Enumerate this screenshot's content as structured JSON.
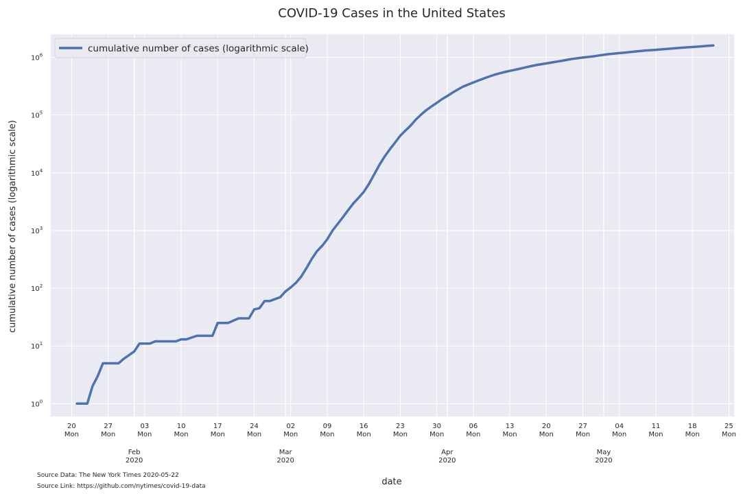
{
  "chart_data": {
    "type": "line",
    "title": "COVID-19 Cases in the United States",
    "xlabel": "date",
    "ylabel": "cumulative number of cases (logarithmic scale)",
    "yscale": "log",
    "ylim": [
      0.6,
      2500000
    ],
    "xlim": [
      "2020-01-16",
      "2020-05-26"
    ],
    "grid": true,
    "legend": {
      "position": "top-left",
      "entries": [
        "cumulative number of cases (logarithmic scale)"
      ]
    },
    "color": "#4c72b0",
    "yticks": [
      {
        "value": 1,
        "base": "10",
        "exp": "0"
      },
      {
        "value": 10,
        "base": "10",
        "exp": "1"
      },
      {
        "value": 100,
        "base": "10",
        "exp": "2"
      },
      {
        "value": 1000,
        "base": "10",
        "exp": "3"
      },
      {
        "value": 10000,
        "base": "10",
        "exp": "4"
      },
      {
        "value": 100000,
        "base": "10",
        "exp": "5"
      },
      {
        "value": 1000000,
        "base": "10",
        "exp": "6"
      }
    ],
    "xticks_minor": [
      {
        "date": "2020-01-20",
        "day": "20",
        "weekday": "Mon"
      },
      {
        "date": "2020-01-27",
        "day": "27",
        "weekday": "Mon"
      },
      {
        "date": "2020-02-03",
        "day": "03",
        "weekday": "Mon"
      },
      {
        "date": "2020-02-10",
        "day": "10",
        "weekday": "Mon"
      },
      {
        "date": "2020-02-17",
        "day": "17",
        "weekday": "Mon"
      },
      {
        "date": "2020-02-24",
        "day": "24",
        "weekday": "Mon"
      },
      {
        "date": "2020-03-02",
        "day": "02",
        "weekday": "Mon"
      },
      {
        "date": "2020-03-09",
        "day": "09",
        "weekday": "Mon"
      },
      {
        "date": "2020-03-16",
        "day": "16",
        "weekday": "Mon"
      },
      {
        "date": "2020-03-23",
        "day": "23",
        "weekday": "Mon"
      },
      {
        "date": "2020-03-30",
        "day": "30",
        "weekday": "Mon"
      },
      {
        "date": "2020-04-06",
        "day": "06",
        "weekday": "Mon"
      },
      {
        "date": "2020-04-13",
        "day": "13",
        "weekday": "Mon"
      },
      {
        "date": "2020-04-20",
        "day": "20",
        "weekday": "Mon"
      },
      {
        "date": "2020-04-27",
        "day": "27",
        "weekday": "Mon"
      },
      {
        "date": "2020-05-04",
        "day": "04",
        "weekday": "Mon"
      },
      {
        "date": "2020-05-11",
        "day": "11",
        "weekday": "Mon"
      },
      {
        "date": "2020-05-18",
        "day": "18",
        "weekday": "Mon"
      },
      {
        "date": "2020-05-25",
        "day": "25",
        "weekday": "Mon"
      }
    ],
    "xticks_major": [
      {
        "date": "2020-02-01",
        "month": "Feb",
        "year": "2020"
      },
      {
        "date": "2020-03-01",
        "month": "Mar",
        "year": "2020"
      },
      {
        "date": "2020-04-01",
        "month": "Apr",
        "year": "2020"
      },
      {
        "date": "2020-05-01",
        "month": "May",
        "year": "2020"
      }
    ],
    "series": [
      {
        "name": "cumulative number of cases (logarithmic scale)",
        "points": [
          [
            "2020-01-21",
            1
          ],
          [
            "2020-01-23",
            1
          ],
          [
            "2020-01-24",
            2
          ],
          [
            "2020-01-25",
            3
          ],
          [
            "2020-01-26",
            5
          ],
          [
            "2020-01-29",
            5
          ],
          [
            "2020-01-30",
            6
          ],
          [
            "2020-02-01",
            8
          ],
          [
            "2020-02-02",
            11
          ],
          [
            "2020-02-04",
            11
          ],
          [
            "2020-02-05",
            12
          ],
          [
            "2020-02-09",
            12
          ],
          [
            "2020-02-10",
            13
          ],
          [
            "2020-02-11",
            13
          ],
          [
            "2020-02-13",
            15
          ],
          [
            "2020-02-16",
            15
          ],
          [
            "2020-02-17",
            25
          ],
          [
            "2020-02-19",
            25
          ],
          [
            "2020-02-21",
            30
          ],
          [
            "2020-02-23",
            30
          ],
          [
            "2020-02-24",
            43
          ],
          [
            "2020-02-25",
            45
          ],
          [
            "2020-02-26",
            60
          ],
          [
            "2020-02-27",
            60
          ],
          [
            "2020-02-29",
            70
          ],
          [
            "2020-03-01",
            88
          ],
          [
            "2020-03-02",
            103
          ],
          [
            "2020-03-03",
            124
          ],
          [
            "2020-03-04",
            158
          ],
          [
            "2020-03-05",
            221
          ],
          [
            "2020-03-06",
            319
          ],
          [
            "2020-03-07",
            435
          ],
          [
            "2020-03-08",
            541
          ],
          [
            "2020-03-09",
            704
          ],
          [
            "2020-03-10",
            994
          ],
          [
            "2020-03-11",
            1301
          ],
          [
            "2020-03-12",
            1697
          ],
          [
            "2020-03-13",
            2247
          ],
          [
            "2020-03-14",
            2943
          ],
          [
            "2020-03-15",
            3680
          ],
          [
            "2020-03-16",
            4663
          ],
          [
            "2020-03-17",
            6411
          ],
          [
            "2020-03-18",
            9367
          ],
          [
            "2020-03-19",
            13680
          ],
          [
            "2020-03-20",
            19101
          ],
          [
            "2020-03-21",
            25493
          ],
          [
            "2020-03-22",
            33276
          ],
          [
            "2020-03-23",
            43847
          ],
          [
            "2020-03-24",
            53740
          ],
          [
            "2020-03-25",
            65778
          ],
          [
            "2020-03-26",
            83836
          ],
          [
            "2020-03-27",
            101657
          ],
          [
            "2020-03-28",
            121465
          ],
          [
            "2020-03-29",
            140909
          ],
          [
            "2020-03-30",
            161831
          ],
          [
            "2020-03-31",
            188172
          ],
          [
            "2020-04-01",
            213242
          ],
          [
            "2020-04-02",
            243622
          ],
          [
            "2020-04-03",
            275367
          ],
          [
            "2020-04-04",
            308650
          ],
          [
            "2020-04-05",
            336802
          ],
          [
            "2020-04-06",
            366317
          ],
          [
            "2020-04-07",
            397121
          ],
          [
            "2020-04-08",
            428654
          ],
          [
            "2020-04-09",
            462780
          ],
          [
            "2020-04-10",
            496535
          ],
          [
            "2020-04-11",
            526396
          ],
          [
            "2020-04-12",
            555313
          ],
          [
            "2020-04-13",
            580619
          ],
          [
            "2020-04-14",
            607670
          ],
          [
            "2020-04-15",
            636350
          ],
          [
            "2020-04-16",
            667592
          ],
          [
            "2020-04-17",
            699706
          ],
          [
            "2020-04-18",
            732197
          ],
          [
            "2020-04-19",
            758809
          ],
          [
            "2020-04-20",
            784326
          ],
          [
            "2020-04-21",
            811865
          ],
          [
            "2020-04-22",
            840351
          ],
          [
            "2020-04-23",
            869170
          ],
          [
            "2020-04-24",
            905358
          ],
          [
            "2020-04-25",
            938154
          ],
          [
            "2020-04-26",
            965785
          ],
          [
            "2020-04-27",
            988197
          ],
          [
            "2020-04-28",
            1012583
          ],
          [
            "2020-04-29",
            1039909
          ],
          [
            "2020-04-30",
            1069424
          ],
          [
            "2020-05-01",
            1103461
          ],
          [
            "2020-05-02",
            1132539
          ],
          [
            "2020-05-03",
            1158040
          ],
          [
            "2020-05-04",
            1180375
          ],
          [
            "2020-05-05",
            1204351
          ],
          [
            "2020-05-06",
            1229331
          ],
          [
            "2020-05-07",
            1257023
          ],
          [
            "2020-05-08",
            1283929
          ],
          [
            "2020-05-09",
            1309550
          ],
          [
            "2020-05-10",
            1329260
          ],
          [
            "2020-05-11",
            1347881
          ],
          [
            "2020-05-12",
            1369376
          ],
          [
            "2020-05-13",
            1390406
          ],
          [
            "2020-05-14",
            1417774
          ],
          [
            "2020-05-15",
            1442824
          ],
          [
            "2020-05-16",
            1467820
          ],
          [
            "2020-05-17",
            1486757
          ],
          [
            "2020-05-18",
            1508308
          ],
          [
            "2020-05-19",
            1528568
          ],
          [
            "2020-05-20",
            1551853
          ],
          [
            "2020-05-21",
            1577147
          ],
          [
            "2020-05-22",
            1600937
          ]
        ]
      }
    ]
  },
  "source": {
    "data_text": "Source Data: The New York Times 2020-05-22",
    "link_text": "Source Link: https://github.com/nytimes/covid-19-data"
  }
}
